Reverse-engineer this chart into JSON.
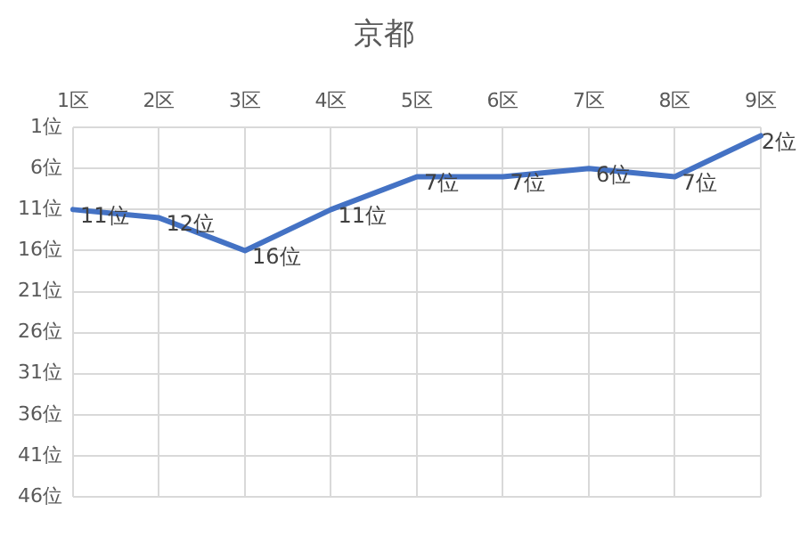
{
  "chart_data": {
    "type": "line",
    "title": "京都",
    "categories": [
      "1区",
      "2区",
      "3区",
      "4区",
      "5区",
      "6区",
      "7区",
      "8区",
      "9区"
    ],
    "series": [
      {
        "color": "#4472c4",
        "values": [
          11,
          12,
          16,
          11,
          7,
          7,
          6,
          7,
          2
        ],
        "value_labels": [
          "11位",
          "12位",
          "16位",
          "11位",
          "7位",
          "7位",
          "6位",
          "7位",
          "2位"
        ]
      }
    ],
    "ylim": [
      46,
      1
    ],
    "yticks": [
      {
        "value": 1,
        "label": "1位"
      },
      {
        "value": 6,
        "label": "6位"
      },
      {
        "value": 11,
        "label": "11位"
      },
      {
        "value": 16,
        "label": "16位"
      },
      {
        "value": 21,
        "label": "21位"
      },
      {
        "value": 26,
        "label": "26位"
      },
      {
        "value": 31,
        "label": "31位"
      },
      {
        "value": 36,
        "label": "36位"
      },
      {
        "value": 41,
        "label": "41位"
      },
      {
        "value": 46,
        "label": "46位"
      }
    ],
    "grid": true,
    "marker": "none",
    "line_style": "solid",
    "legend": false
  }
}
